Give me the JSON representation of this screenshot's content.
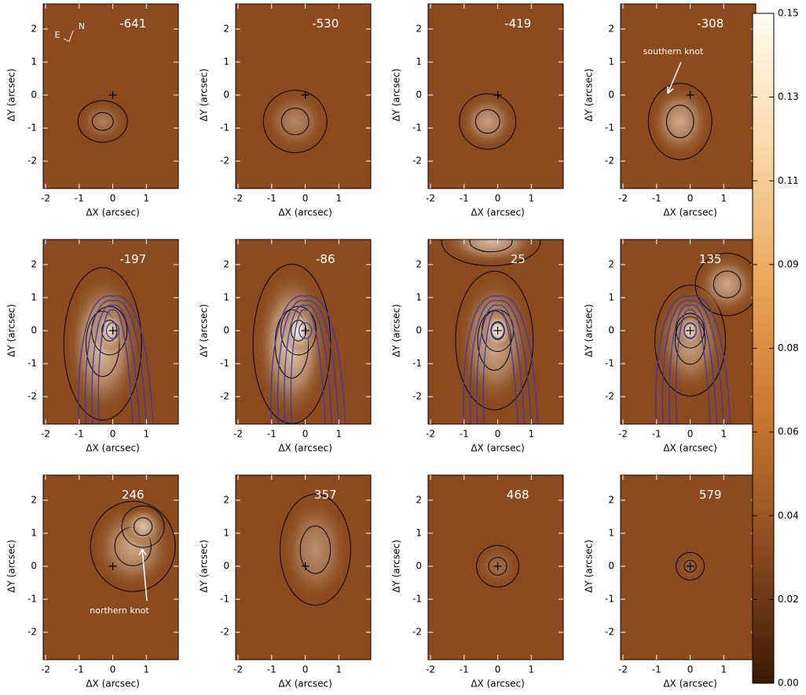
{
  "chart_data": [
    {
      "type": "heatmap",
      "label": -641,
      "xlabel": "ΔX (arcsec)",
      "ylabel": "ΔY (arcsec)",
      "xlim": [
        -2.07,
        1.95
      ],
      "ylim": [
        -2.83,
        2.76
      ],
      "xticks": [
        -2,
        -1,
        0,
        1
      ],
      "yticks": [
        -2,
        -1,
        0,
        1,
        2
      ],
      "annotations": [
        "E",
        "N"
      ]
    },
    {
      "type": "heatmap",
      "label": -530,
      "xlabel": "ΔX (arcsec)",
      "ylabel": "ΔY (arcsec)",
      "xlim": [
        -2.07,
        1.95
      ],
      "ylim": [
        -2.83,
        2.76
      ],
      "xticks": [
        -2,
        -1,
        0,
        1
      ],
      "yticks": [
        -2,
        -1,
        0,
        1,
        2
      ]
    },
    {
      "type": "heatmap",
      "label": -419,
      "xlabel": "ΔX (arcsec)",
      "ylabel": "ΔY (arcsec)",
      "xlim": [
        -2.07,
        1.95
      ],
      "ylim": [
        -2.83,
        2.76
      ],
      "xticks": [
        -2,
        -1,
        0,
        1
      ],
      "yticks": [
        -2,
        -1,
        0,
        1,
        2
      ]
    },
    {
      "type": "heatmap",
      "label": -308,
      "xlabel": "ΔX (arcsec)",
      "ylabel": "ΔY (arcsec)",
      "xlim": [
        -2.07,
        1.95
      ],
      "ylim": [
        -2.83,
        2.76
      ],
      "xticks": [
        -2,
        -1,
        0,
        1
      ],
      "yticks": [
        -2,
        -1,
        0,
        1,
        2
      ],
      "annotations": [
        "southern knot"
      ]
    },
    {
      "type": "heatmap",
      "label": -197,
      "xlabel": "ΔX (arcsec)",
      "ylabel": "ΔY (arcsec)",
      "xlim": [
        -2.07,
        1.95
      ],
      "ylim": [
        -2.83,
        2.76
      ],
      "xticks": [
        -2,
        -1,
        0,
        1
      ],
      "yticks": [
        -2,
        -1,
        0,
        1,
        2
      ]
    },
    {
      "type": "heatmap",
      "label": -86,
      "xlabel": "ΔX (arcsec)",
      "ylabel": "ΔY (arcsec)",
      "xlim": [
        -2.07,
        1.95
      ],
      "ylim": [
        -2.83,
        2.76
      ],
      "xticks": [
        -2,
        -1,
        0,
        1
      ],
      "yticks": [
        -2,
        -1,
        0,
        1,
        2
      ]
    },
    {
      "type": "heatmap",
      "label": 25,
      "xlabel": "ΔX (arcsec)",
      "ylabel": "ΔY (arcsec)",
      "xlim": [
        -2.07,
        1.95
      ],
      "ylim": [
        -2.83,
        2.76
      ],
      "xticks": [
        -2,
        -1,
        0,
        1
      ],
      "yticks": [
        -2,
        -1,
        0,
        1,
        2
      ]
    },
    {
      "type": "heatmap",
      "label": 135,
      "xlabel": "ΔX (arcsec)",
      "ylabel": "ΔY (arcsec)",
      "xlim": [
        -2.07,
        1.95
      ],
      "ylim": [
        -2.83,
        2.76
      ],
      "xticks": [
        -2,
        -1,
        0,
        1
      ],
      "yticks": [
        -2,
        -1,
        0,
        1,
        2
      ]
    },
    {
      "type": "heatmap",
      "label": 246,
      "xlabel": "ΔX (arcsec)",
      "ylabel": "ΔY (arcsec)",
      "xlim": [
        -2.07,
        1.95
      ],
      "ylim": [
        -2.83,
        2.76
      ],
      "xticks": [
        -2,
        -1,
        0,
        1
      ],
      "yticks": [
        -2,
        -1,
        0,
        1,
        2
      ],
      "annotations": [
        "northern knot"
      ]
    },
    {
      "type": "heatmap",
      "label": 357,
      "xlabel": "ΔX (arcsec)",
      "ylabel": "ΔY (arcsec)",
      "xlim": [
        -2.07,
        1.95
      ],
      "ylim": [
        -2.83,
        2.76
      ],
      "xticks": [
        -2,
        -1,
        0,
        1
      ],
      "yticks": [
        -2,
        -1,
        0,
        1,
        2
      ]
    },
    {
      "type": "heatmap",
      "label": 468,
      "xlabel": "ΔX (arcsec)",
      "ylabel": "ΔY (arcsec)",
      "xlim": [
        -2.07,
        1.95
      ],
      "ylim": [
        -2.83,
        2.76
      ],
      "xticks": [
        -2,
        -1,
        0,
        1
      ],
      "yticks": [
        -2,
        -1,
        0,
        1,
        2
      ]
    },
    {
      "type": "heatmap",
      "label": 579,
      "xlabel": "ΔX (arcsec)",
      "ylabel": "ΔY (arcsec)",
      "xlim": [
        -2.07,
        1.95
      ],
      "ylim": [
        -2.83,
        2.76
      ],
      "xticks": [
        -2,
        -1,
        0,
        1
      ],
      "yticks": [
        -2,
        -1,
        0,
        1,
        2
      ]
    },
    {
      "type": "colorbar",
      "colors": [
        "#3a1a05",
        "#8b4b1f",
        "#c8772e",
        "#eba658",
        "#f8d9a8",
        "#fffbf2"
      ],
      "ylim": [
        0,
        0.15
      ],
      "yticks": [
        {
          "value": 0,
          "label": "0.00"
        },
        {
          "value": 0.01875,
          "label": "0.02"
        },
        {
          "value": 0.0375,
          "label": "0.04"
        },
        {
          "value": 0.05625,
          "label": "0.06"
        },
        {
          "value": 0.075,
          "label": "0.08"
        },
        {
          "value": 0.09375,
          "label": "0.09"
        },
        {
          "value": 0.1125,
          "label": "0.11"
        },
        {
          "value": 0.13125,
          "label": "0.13"
        },
        {
          "value": 0.15,
          "label": "0.15"
        }
      ]
    }
  ]
}
